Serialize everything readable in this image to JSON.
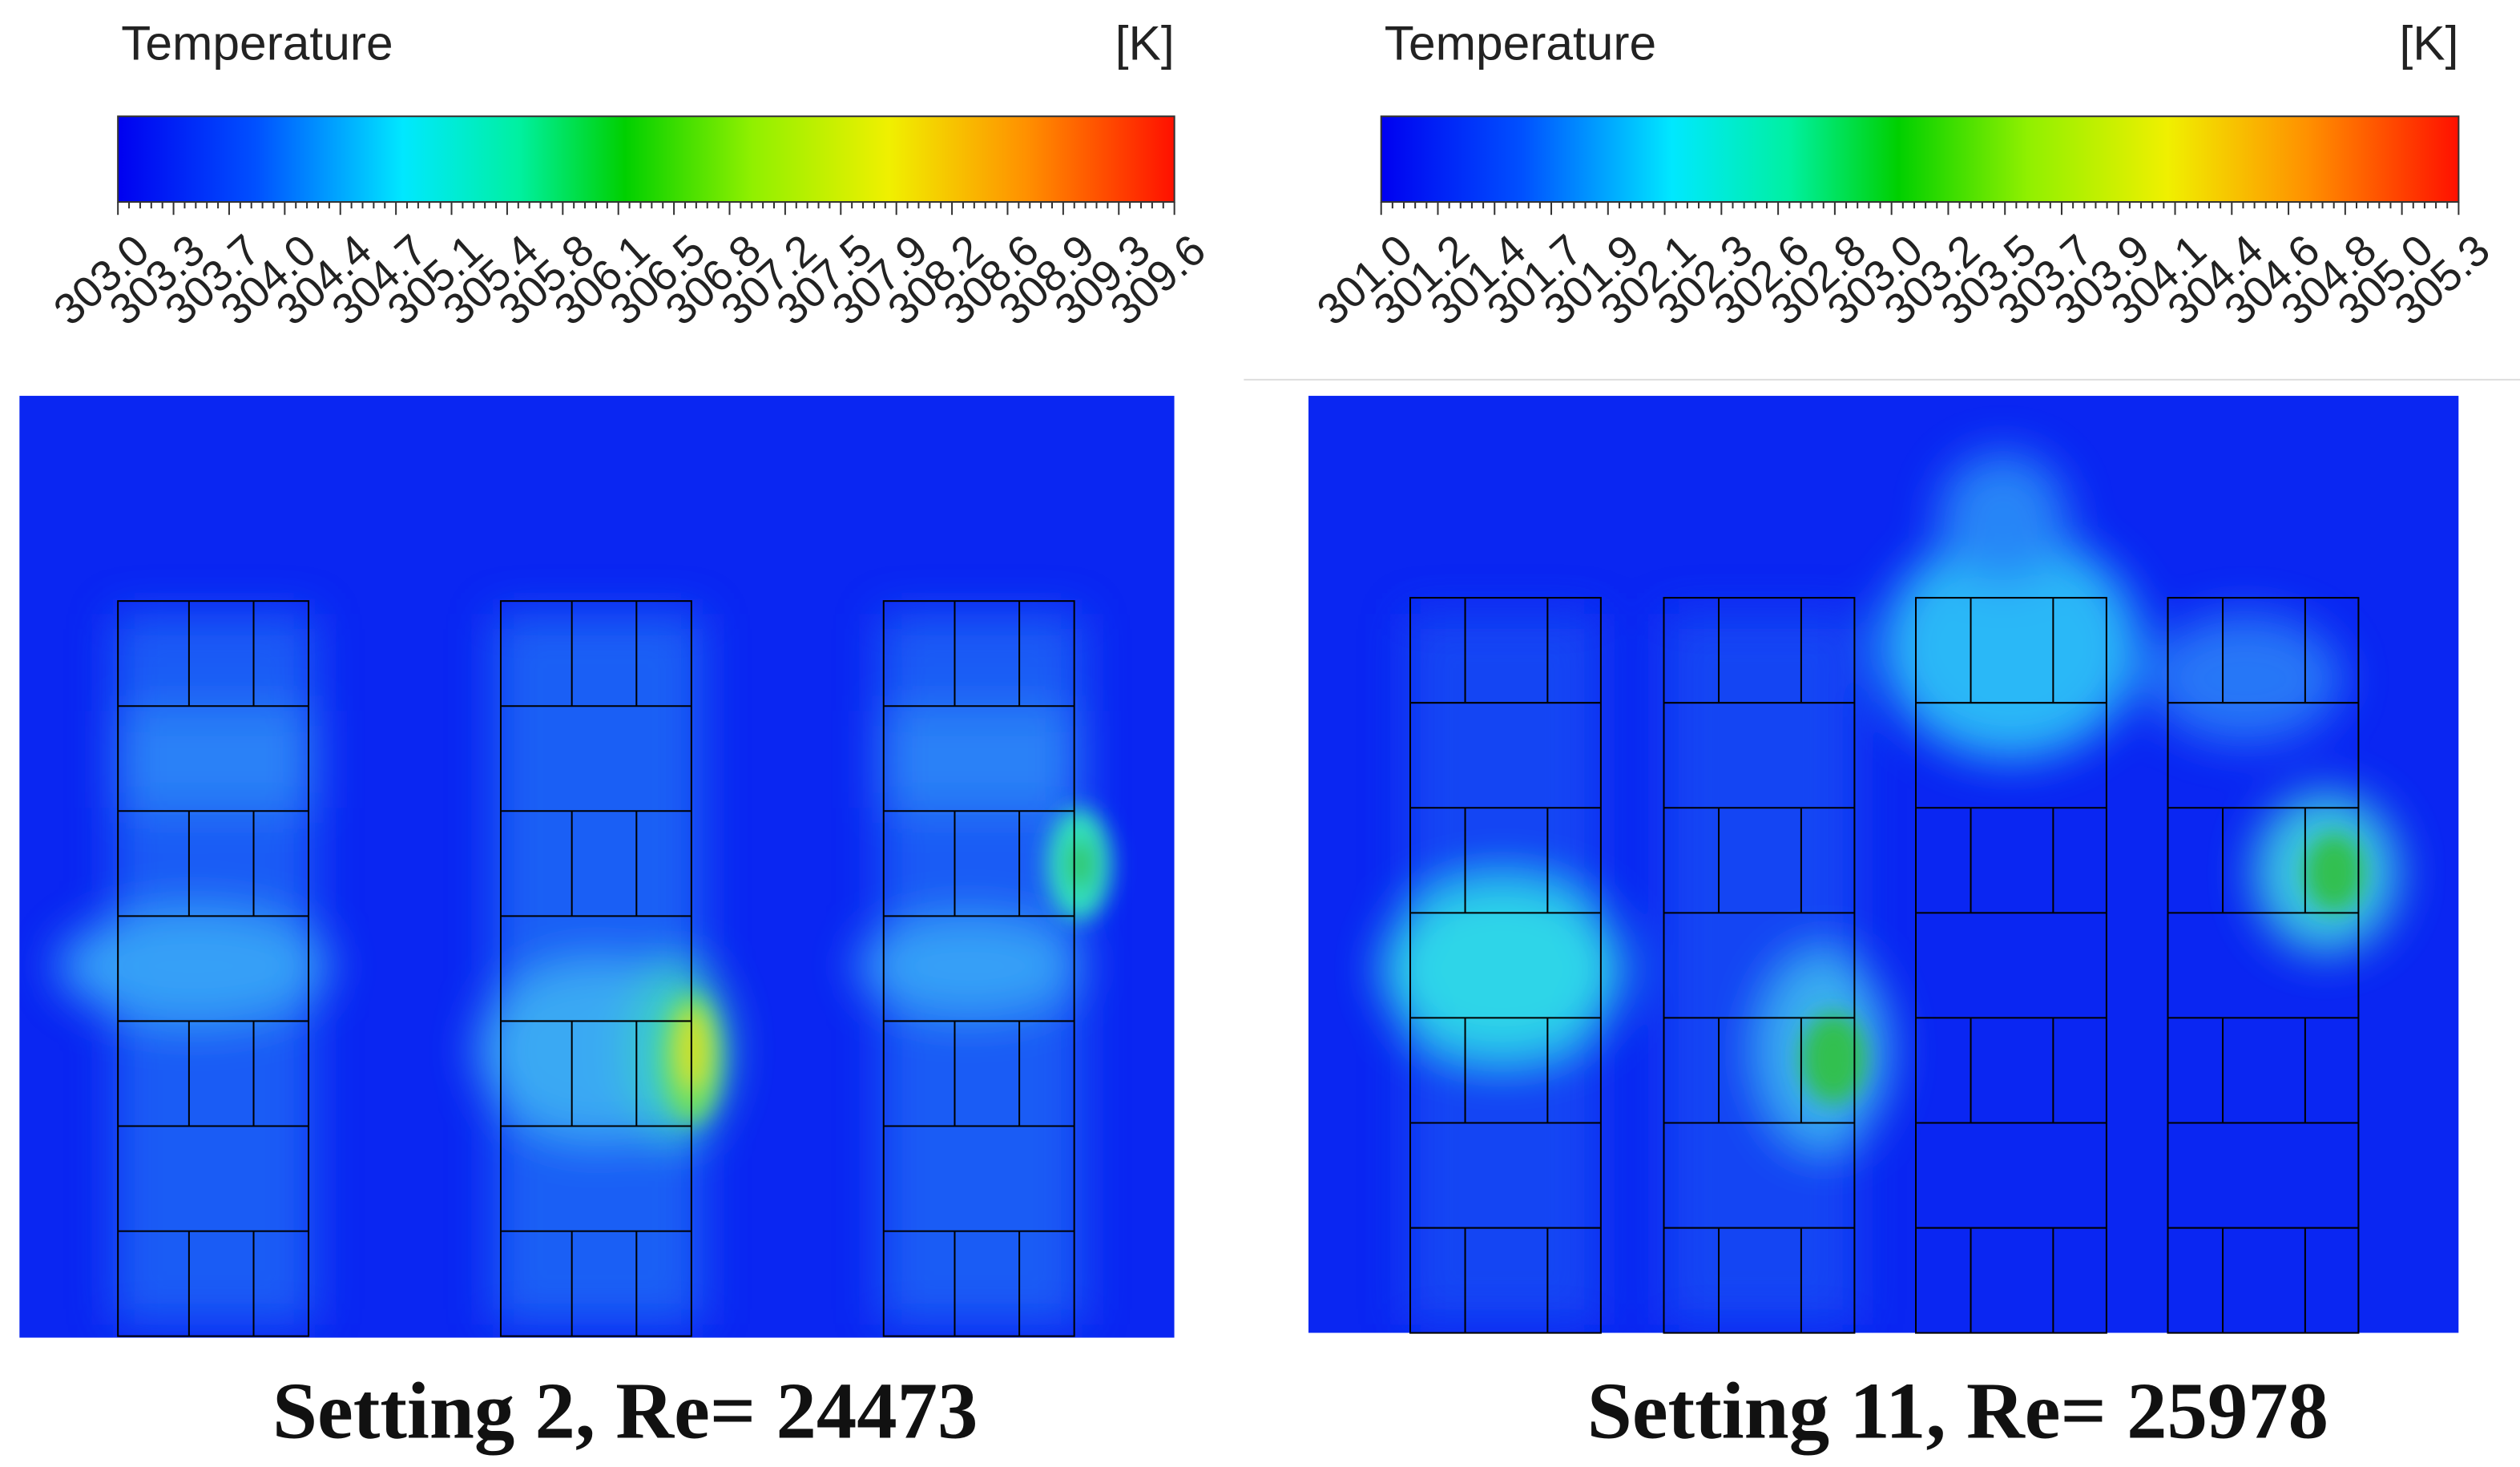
{
  "panels": [
    {
      "colorbar": {
        "title": "Temperature",
        "unit": "[K]",
        "ticks": [
          "303.0",
          "303.3",
          "303.7",
          "304.0",
          "304.4",
          "304.7",
          "305.1",
          "305.4",
          "305.8",
          "306.1",
          "306.5",
          "306.8",
          "307.2",
          "307.5",
          "307.9",
          "308.2",
          "308.6",
          "308.9",
          "309.3",
          "309.6"
        ]
      },
      "caption": "Setting 2, Re= 24473"
    },
    {
      "colorbar": {
        "title": "Temperature",
        "unit": "[K]",
        "ticks": [
          "301.0",
          "301.2",
          "301.4",
          "301.7",
          "301.9",
          "302.1",
          "302.3",
          "302.6",
          "302.8",
          "303.0",
          "303.2",
          "303.5",
          "303.7",
          "303.9",
          "304.1",
          "304.4",
          "304.6",
          "304.8",
          "305.0",
          "305.3"
        ]
      },
      "caption": "Setting 11, Re= 25978"
    }
  ]
}
